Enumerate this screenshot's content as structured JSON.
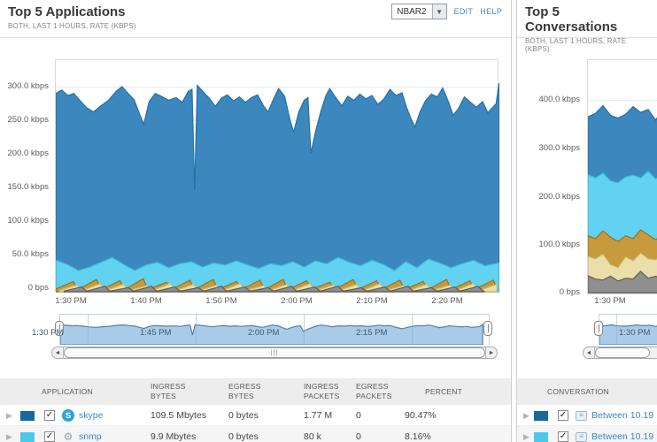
{
  "left_panel": {
    "title": "Top 5 Applications",
    "subtitle": "BOTH, LAST 1 HOURS, RATE (KBPS)",
    "dropdown_value": "NBAR2",
    "edit_label": "EDIT",
    "help_label": "HELP",
    "chart_data": {
      "type": "area",
      "title": "Top 5 Applications rate",
      "units": "kbps",
      "x_ticks": [
        "1:30 PM",
        "1:40 PM",
        "1:50 PM",
        "2:00 PM",
        "2:10 PM",
        "2:20 PM"
      ],
      "y_ticks": [
        "300.0 kbps",
        "250.0 kbps",
        "200.0 kbps",
        "150.0 kbps",
        "100.0 kbps",
        "50.0 kbps",
        "0 bps"
      ],
      "ylim": [
        0,
        343
      ],
      "grid": true,
      "x_minutes_span": 59,
      "series": [
        {
          "name": "skype",
          "color": "#3c88be",
          "stroke": "#2470a7",
          "points": [
            [
              0,
              290
            ],
            [
              0.8,
              295
            ],
            [
              1.6,
              287
            ],
            [
              2.4,
              290
            ],
            [
              3.2,
              280
            ],
            [
              4,
              270
            ],
            [
              5,
              263
            ],
            [
              6,
              272
            ],
            [
              7,
              280
            ],
            [
              8,
              293
            ],
            [
              8.8,
              300
            ],
            [
              9.6,
              290
            ],
            [
              10.4,
              281
            ],
            [
              11.2,
              258
            ],
            [
              11.7,
              245
            ],
            [
              12.4,
              278
            ],
            [
              13.2,
              290
            ],
            [
              14,
              286
            ],
            [
              15,
              280
            ],
            [
              16,
              284
            ],
            [
              16.8,
              277
            ],
            [
              17.6,
              293
            ],
            [
              18.1,
              296
            ],
            [
              18.45,
              148
            ],
            [
              18.8,
              302
            ],
            [
              19.6,
              292
            ],
            [
              20.4,
              283
            ],
            [
              21.2,
              271
            ],
            [
              22,
              283
            ],
            [
              22.8,
              288
            ],
            [
              23.6,
              279
            ],
            [
              24.4,
              285
            ],
            [
              25.2,
              277
            ],
            [
              26,
              284
            ],
            [
              26.8,
              288
            ],
            [
              27.6,
              272
            ],
            [
              28.2,
              263
            ],
            [
              28.9,
              281
            ],
            [
              29.6,
              297
            ],
            [
              30.4,
              286
            ],
            [
              31.1,
              252
            ],
            [
              31.6,
              233
            ],
            [
              32.3,
              263
            ],
            [
              33,
              280
            ],
            [
              33.5,
              284
            ],
            [
              33.9,
              202
            ],
            [
              34.5,
              234
            ],
            [
              35.2,
              263
            ],
            [
              35.9,
              287
            ],
            [
              36.4,
              297
            ],
            [
              37.2,
              284
            ],
            [
              38,
              272
            ],
            [
              38.8,
              286
            ],
            [
              39.6,
              280
            ],
            [
              40.4,
              289
            ],
            [
              41.2,
              282
            ],
            [
              42,
              287
            ],
            [
              42.8,
              274
            ],
            [
              43.6,
              282
            ],
            [
              44.4,
              296
            ],
            [
              45.2,
              287
            ],
            [
              46,
              291
            ],
            [
              46.6,
              270
            ],
            [
              47.2,
              253
            ],
            [
              47.7,
              241
            ],
            [
              48.4,
              263
            ],
            [
              49.1,
              279
            ],
            [
              49.9,
              289
            ],
            [
              50.7,
              285
            ],
            [
              51.4,
              298
            ],
            [
              52.2,
              277
            ],
            [
              52.8,
              258
            ],
            [
              53.5,
              268
            ],
            [
              54.3,
              285
            ],
            [
              55.1,
              277
            ],
            [
              55.9,
              270
            ],
            [
              56.7,
              278
            ],
            [
              57.4,
              262
            ],
            [
              58,
              269
            ],
            [
              58.5,
              275
            ],
            [
              58.9,
              305
            ]
          ]
        },
        {
          "name": "snmp",
          "color": "#62d2f2",
          "stroke": "#35bade",
          "points": [
            [
              0,
              46
            ],
            [
              1.5,
              40
            ],
            [
              3,
              31
            ],
            [
              4.5,
              36
            ],
            [
              6,
              43
            ],
            [
              7.5,
              50
            ],
            [
              9,
              40
            ],
            [
              10.5,
              31
            ],
            [
              12,
              39
            ],
            [
              13.5,
              43
            ],
            [
              15,
              35
            ],
            [
              16.5,
              41
            ],
            [
              18,
              44
            ],
            [
              19.5,
              36
            ],
            [
              21,
              42
            ],
            [
              22.5,
              39
            ],
            [
              24,
              45
            ],
            [
              25.5,
              39
            ],
            [
              27,
              34
            ],
            [
              28.5,
              41
            ],
            [
              30,
              38
            ],
            [
              31.5,
              44
            ],
            [
              33,
              36
            ],
            [
              34.5,
              45
            ],
            [
              36,
              41
            ],
            [
              37.5,
              50
            ],
            [
              39,
              43
            ],
            [
              40.5,
              38
            ],
            [
              42,
              46
            ],
            [
              43.5,
              40
            ],
            [
              45,
              31
            ],
            [
              46.5,
              44
            ],
            [
              48,
              35
            ],
            [
              49.5,
              48
            ],
            [
              51,
              42
            ],
            [
              52.5,
              35
            ],
            [
              54,
              41
            ],
            [
              55.5,
              46
            ],
            [
              57,
              38
            ],
            [
              58.9,
              42
            ]
          ]
        },
        {
          "name": "",
          "color": "#c69a3d",
          "stroke": "#97721f",
          "sawtooth": {
            "period": 3.1,
            "offset": 0,
            "trough": 4,
            "peaks": [
              15,
              18,
              16,
              19,
              14,
              17,
              18,
              15,
              17,
              18,
              16,
              14,
              18,
              16,
              17,
              15,
              18,
              16,
              17
            ]
          }
        },
        {
          "name": "",
          "color": "#eadfa8",
          "stroke": "#cdb96a",
          "sawtooth": {
            "period": 3.1,
            "offset": 0.5,
            "trough": 2,
            "peaks": [
              10,
              12,
              11,
              9,
              12,
              11,
              10,
              12,
              9,
              11,
              12,
              10,
              11,
              12,
              9,
              11,
              10,
              12,
              11
            ]
          }
        },
        {
          "name": "",
          "color": "#8f8f8f",
          "stroke": "#5e5e5e",
          "sawtooth": {
            "period": 3.1,
            "offset": 1.1,
            "trough": 1,
            "peaks": [
              7,
              8,
              6,
              8,
              7,
              6,
              8,
              7,
              6,
              8,
              7,
              8,
              6,
              7,
              8,
              6,
              7,
              8,
              6
            ]
          }
        }
      ]
    },
    "scrubber": {
      "labels": [
        "1:30 PM",
        "1:45 PM",
        "2:00 PM",
        "2:15 PM"
      ]
    },
    "table": {
      "columns": [
        {
          "l1": "APPLICATION",
          "l2": ""
        },
        {
          "l1": "INGRESS",
          "l2": "BYTES"
        },
        {
          "l1": "EGRESS",
          "l2": "BYTES"
        },
        {
          "l1": "INGRESS",
          "l2": "PACKETS"
        },
        {
          "l1": "EGRESS",
          "l2": "PACKETS"
        },
        {
          "l1": "PERCENT",
          "l2": ""
        }
      ],
      "rows": [
        {
          "swatch": "#17689c",
          "name": "skype",
          "ingress_bytes": "109.5 Mbytes",
          "egress_bytes": "0 bytes",
          "ingress_packets": "1.77 M",
          "egress_packets": "0",
          "percent": "90.47%"
        },
        {
          "swatch": "#4cc8eb",
          "name": "snmp",
          "ingress_bytes": "9.9 Mbytes",
          "egress_bytes": "0 bytes",
          "ingress_packets": "80 k",
          "egress_packets": "0",
          "percent": "8.16%"
        }
      ]
    }
  },
  "right_panel": {
    "title": "Top 5 Conversations",
    "subtitle": "BOTH, LAST 1 HOURS, RATE (KBPS)",
    "chart_data": {
      "type": "area",
      "title": "Top 5 Conversations rate",
      "units": "kbps",
      "x_ticks": [
        "1:30 PM"
      ],
      "y_ticks": [
        "400.0 kbps",
        "300.0 kbps",
        "200.0 kbps",
        "100.0 kbps",
        "0 bps"
      ],
      "ylim": [
        0,
        490
      ],
      "grid": true,
      "x_minutes_span": 9.4,
      "series": [
        {
          "name": "",
          "color": "#3c88be",
          "stroke": "#2470a7",
          "points": [
            [
              0,
              365
            ],
            [
              1,
              372
            ],
            [
              2,
              388
            ],
            [
              3,
              368
            ],
            [
              4,
              362
            ],
            [
              5,
              370
            ],
            [
              6,
              386
            ],
            [
              7,
              374
            ],
            [
              8,
              380
            ],
            [
              9,
              358
            ],
            [
              9.4,
              368
            ]
          ]
        },
        {
          "name": "",
          "color": "#62d2f2",
          "stroke": "#35bade",
          "points": [
            [
              0,
              245
            ],
            [
              1,
              238
            ],
            [
              2,
              248
            ],
            [
              3,
              232
            ],
            [
              4,
              228
            ],
            [
              5,
              240
            ],
            [
              6,
              244
            ],
            [
              7,
              238
            ],
            [
              8,
              252
            ],
            [
              9,
              236
            ],
            [
              9.4,
              240
            ]
          ]
        },
        {
          "name": "",
          "color": "#c69a3d",
          "stroke": "#97721f",
          "points": [
            [
              0,
              118
            ],
            [
              1,
              112
            ],
            [
              2,
              128
            ],
            [
              3,
              115
            ],
            [
              4,
              106
            ],
            [
              5,
              118
            ],
            [
              6,
              112
            ],
            [
              7,
              130
            ],
            [
              8,
              120
            ],
            [
              9,
              110
            ],
            [
              9.4,
              114
            ]
          ]
        },
        {
          "name": "",
          "color": "#eadfa8",
          "stroke": "#cdb96a",
          "points": [
            [
              0,
              75
            ],
            [
              1,
              70
            ],
            [
              2,
              80
            ],
            [
              3,
              58
            ],
            [
              4,
              52
            ],
            [
              5,
              74
            ],
            [
              6,
              66
            ],
            [
              7,
              82
            ],
            [
              8,
              70
            ],
            [
              9,
              68
            ],
            [
              9.4,
              72
            ]
          ]
        },
        {
          "name": "",
          "color": "#8f8f8f",
          "stroke": "#5e5e5e",
          "points": [
            [
              0,
              35
            ],
            [
              1,
              28
            ],
            [
              2,
              26
            ],
            [
              3,
              34
            ],
            [
              4,
              24
            ],
            [
              5,
              30
            ],
            [
              6,
              28
            ],
            [
              7,
              44
            ],
            [
              8,
              30
            ],
            [
              9,
              34
            ],
            [
              9.4,
              32
            ]
          ]
        }
      ]
    },
    "scrubber": {
      "labels": [
        "1:30 PM"
      ]
    },
    "table": {
      "columns": [
        {
          "l1": "CONVERSATION",
          "l2": ""
        }
      ],
      "rows": [
        {
          "swatch": "#17689c",
          "name": "Between 10.19"
        },
        {
          "swatch": "#4cc8eb",
          "name": "Between 10.19"
        }
      ]
    }
  }
}
